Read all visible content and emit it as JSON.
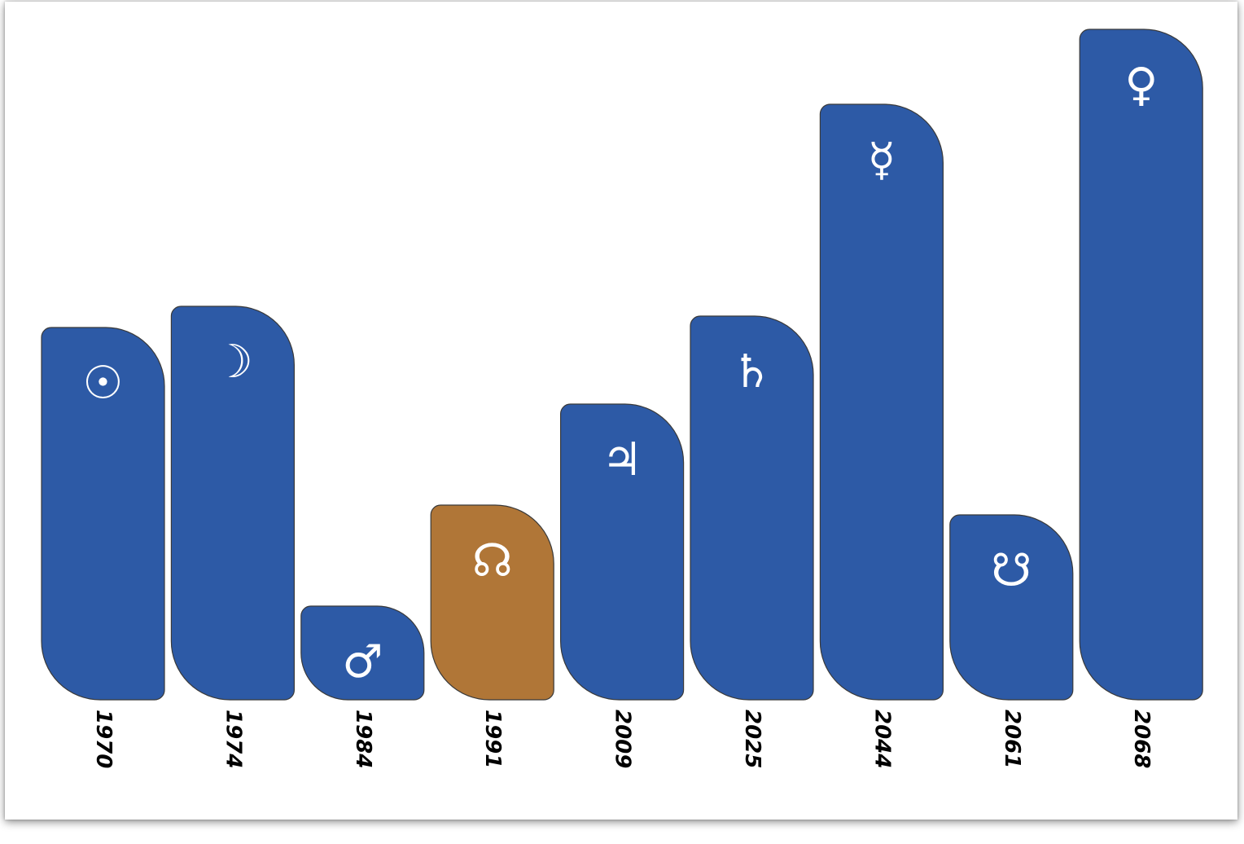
{
  "chart_data": {
    "type": "bar",
    "title": "",
    "xlabel": "",
    "ylabel": "",
    "categories": [
      "1970",
      "1974",
      "1984",
      "1991",
      "2009",
      "2025",
      "2044",
      "2061",
      "2068"
    ],
    "values": [
      457,
      483,
      115,
      239,
      363,
      471,
      731,
      227,
      823
    ],
    "symbols": [
      "☉",
      "☽",
      "♂",
      "☊",
      "♃",
      "♄",
      "☿",
      "☋",
      "♀"
    ],
    "highlight_index": 3,
    "ylim": [
      0,
      823
    ],
    "grid": false,
    "colors": {
      "bar": "#2d5aa6",
      "highlight": "#b07637",
      "bar_stroke": "#3a3a3a",
      "symbol": "#ffffff",
      "tick_label": "#000000"
    }
  }
}
